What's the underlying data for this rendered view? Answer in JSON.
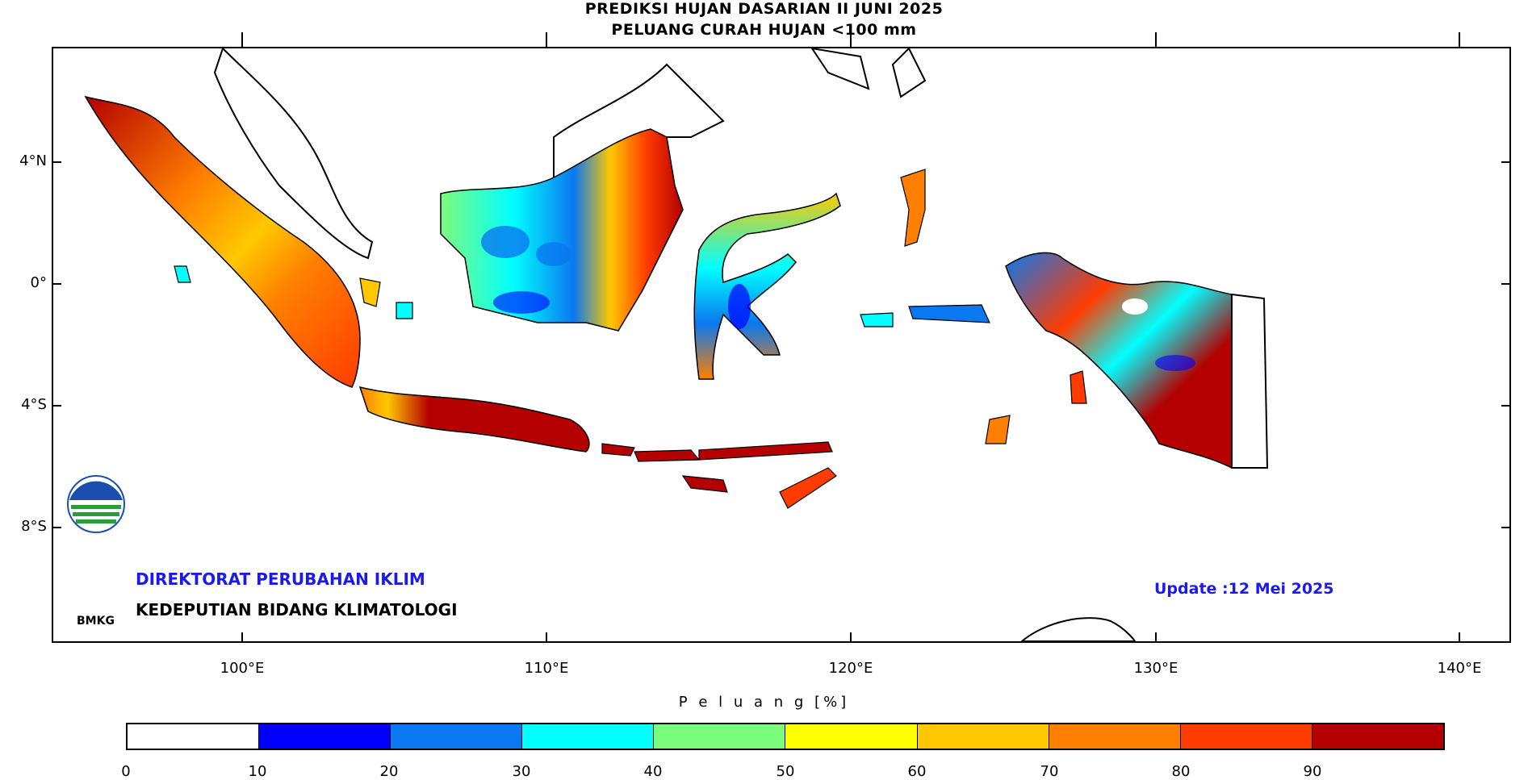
{
  "title": {
    "line1": "PREDIKSI HUJAN DASARIAN II JUNI 2025",
    "line2": "PELUANG CURAH HUJAN <100 mm"
  },
  "map": {
    "lat_labels": [
      "4°N",
      "0°",
      "4°S",
      "8°S"
    ],
    "lon_labels": [
      "100°E",
      "110°E",
      "120°E",
      "130°E",
      "140°E"
    ]
  },
  "org": {
    "line1": "DIREKTORAT PERUBAHAN IKLIM",
    "line2": "KEDEPUTIAN BIDANG KLIMATOLOGI",
    "logo_text": "BMKG"
  },
  "update": "Update :12 Mei  2025",
  "colorbar": {
    "title": "P e l u a n g [%]",
    "labels": [
      "0",
      "10",
      "20",
      "30",
      "40",
      "50",
      "60",
      "70",
      "80",
      "90"
    ],
    "colors": [
      "#ffffff",
      "#0000ff",
      "#0a78f0",
      "#00ffff",
      "#7cfc7c",
      "#ffff00",
      "#ffc800",
      "#ff7f00",
      "#ff3c00",
      "#b40000"
    ]
  },
  "colors": {
    "land_outline": "#000000",
    "deep_red": "#b40000",
    "red_orange": "#ff3c00",
    "orange": "#ff7f00",
    "yellow": "#ffff00",
    "green": "#7cfc7c",
    "cyan": "#00ffff",
    "blue": "#0a78f0",
    "dark_blue": "#0000ff"
  }
}
